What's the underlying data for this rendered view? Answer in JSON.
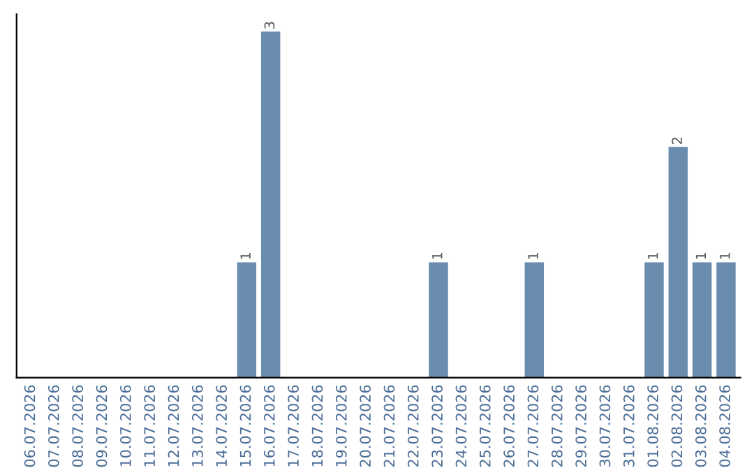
{
  "chart_data": {
    "type": "bar",
    "categories": [
      "06.07.2026",
      "07.07.2026",
      "08.07.2026",
      "09.07.2026",
      "10.07.2026",
      "11.07.2026",
      "12.07.2026",
      "13.07.2026",
      "14.07.2026",
      "15.07.2026",
      "16.07.2026",
      "17.07.2026",
      "18.07.2026",
      "19.07.2026",
      "20.07.2026",
      "21.07.2026",
      "22.07.2026",
      "23.07.2026",
      "24.07.2026",
      "25.07.2026",
      "26.07.2026",
      "27.07.2026",
      "28.07.2026",
      "29.07.2026",
      "30.07.2026",
      "31.07.2026",
      "01.08.2026",
      "02.08.2026",
      "03.08.2026",
      "04.08.2026"
    ],
    "values": [
      0,
      0,
      0,
      0,
      0,
      0,
      0,
      0,
      0,
      1,
      3,
      0,
      0,
      0,
      0,
      0,
      0,
      1,
      0,
      0,
      0,
      1,
      0,
      0,
      0,
      0,
      1,
      2,
      1,
      1
    ],
    "value_labels": [
      null,
      null,
      null,
      null,
      null,
      null,
      null,
      null,
      null,
      "1",
      "3",
      null,
      null,
      null,
      null,
      null,
      null,
      "1",
      null,
      null,
      null,
      "1",
      null,
      null,
      null,
      null,
      "1",
      "2",
      "1",
      "1"
    ],
    "color": "#6a8caf",
    "tick_labels": "x",
    "grid": false,
    "legend": false
  }
}
